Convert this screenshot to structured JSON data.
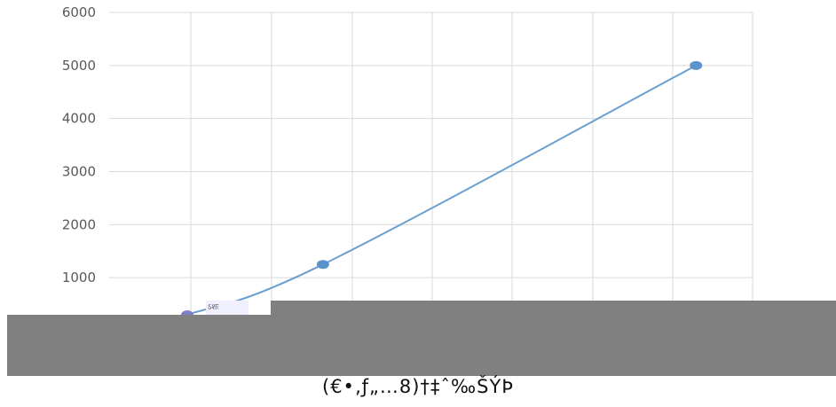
{
  "chart_data": {
    "type": "line",
    "title": "",
    "xlabel": "",
    "ylabel": "",
    "ylim": [
      0,
      6000
    ],
    "y_ticks": [
      "1000",
      "2000",
      "3000",
      "4000",
      "5000",
      "6000"
    ],
    "grid": true,
    "smooth": true,
    "series": [
      {
        "points": [
          {
            "x": 0.0,
            "y": 300
          },
          {
            "x": 1.68,
            "y": 1250
          },
          {
            "x": 6.3,
            "y": 5000
          }
        ]
      }
    ],
    "colors": {
      "line": "#6a9fd0",
      "marker": "#5b93cc",
      "first_marker": "#7f7fc8",
      "grid": "#d9d9d9",
      "overlay": "#808080"
    }
  },
  "overlay": {
    "small_label": "ऽशः",
    "caption": "(€•‚ƒ„…8)†‡ˆ‰ŠÝÞ"
  }
}
